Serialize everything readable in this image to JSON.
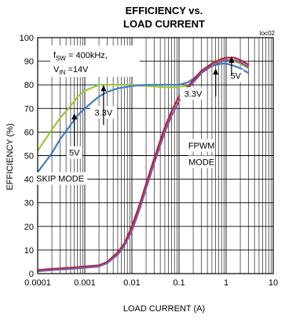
{
  "chart_data": {
    "type": "line",
    "title_line1": "EFFICIENCY vs.",
    "title_line2": "LOAD CURRENT",
    "tag": "toc02",
    "xlabel": "LOAD CURRENT (A)",
    "ylabel": "EFFICIENCY (%)",
    "xscale": "log",
    "xlim": [
      0.0001,
      10
    ],
    "ylim": [
      0,
      100
    ],
    "grid": true,
    "x_ticks": [
      {
        "value": 0.0001,
        "label": "0.0001"
      },
      {
        "value": 0.001,
        "label": "0.001"
      },
      {
        "value": 0.01,
        "label": "0.01"
      },
      {
        "value": 0.1,
        "label": "0.1"
      },
      {
        "value": 1,
        "label": "1"
      },
      {
        "value": 10,
        "label": "10"
      }
    ],
    "y_ticks": [
      {
        "value": 0,
        "label": "0"
      },
      {
        "value": 10,
        "label": "10"
      },
      {
        "value": 20,
        "label": "20"
      },
      {
        "value": 30,
        "label": "30"
      },
      {
        "value": 40,
        "label": "40"
      },
      {
        "value": 50,
        "label": "50"
      },
      {
        "value": 60,
        "label": "60"
      },
      {
        "value": 70,
        "label": "70"
      },
      {
        "value": 80,
        "label": "80"
      },
      {
        "value": 90,
        "label": "90"
      },
      {
        "value": 100,
        "label": "100"
      }
    ],
    "condition_line1": {
      "base": "f",
      "sub": "SW",
      "rest": " = 400kHz,"
    },
    "condition_line2": {
      "base": "V",
      "sub": "IN",
      "rest": " =14V"
    },
    "series": [
      {
        "color": "#9cc63b",
        "points": [
          [
            0.0001,
            52
          ],
          [
            0.0002,
            61
          ],
          [
            0.0003,
            66
          ],
          [
            0.0005,
            71
          ],
          [
            0.0007,
            75
          ],
          [
            0.001,
            77.5
          ],
          [
            0.0015,
            79
          ],
          [
            0.002,
            80
          ],
          [
            0.003,
            80
          ],
          [
            0.005,
            80
          ],
          [
            0.01,
            80
          ],
          [
            0.02,
            79.5
          ],
          [
            0.05,
            79
          ],
          [
            0.1,
            79
          ],
          [
            0.15,
            79.5
          ],
          [
            0.2,
            81
          ],
          [
            0.3,
            85
          ],
          [
            0.5,
            89
          ],
          [
            0.8,
            90.5
          ],
          [
            1,
            90.5
          ],
          [
            1.5,
            90
          ],
          [
            2,
            89
          ],
          [
            3,
            87
          ]
        ]
      },
      {
        "color": "#3f7cc4",
        "points": [
          [
            0.0001,
            43
          ],
          [
            0.0002,
            51
          ],
          [
            0.0003,
            57
          ],
          [
            0.0005,
            63
          ],
          [
            0.0007,
            67
          ],
          [
            0.001,
            70
          ],
          [
            0.0015,
            73
          ],
          [
            0.002,
            75
          ],
          [
            0.003,
            77
          ],
          [
            0.005,
            78.5
          ],
          [
            0.01,
            79.5
          ],
          [
            0.02,
            80
          ],
          [
            0.05,
            80
          ],
          [
            0.1,
            80
          ],
          [
            0.15,
            81
          ],
          [
            0.2,
            82.5
          ],
          [
            0.3,
            85.5
          ],
          [
            0.5,
            88
          ],
          [
            0.8,
            89
          ],
          [
            1,
            89
          ],
          [
            1.5,
            88
          ],
          [
            2,
            87
          ],
          [
            3,
            85
          ]
        ]
      },
      {
        "color": "#b82030",
        "points": [
          [
            0.0001,
            1.5
          ],
          [
            0.0002,
            2
          ],
          [
            0.0005,
            2.5
          ],
          [
            0.001,
            3
          ],
          [
            0.002,
            3.5
          ],
          [
            0.003,
            5
          ],
          [
            0.005,
            9
          ],
          [
            0.007,
            13
          ],
          [
            0.01,
            20
          ],
          [
            0.015,
            30
          ],
          [
            0.02,
            38
          ],
          [
            0.03,
            49
          ],
          [
            0.05,
            62
          ],
          [
            0.07,
            69
          ],
          [
            0.1,
            75
          ],
          [
            0.15,
            79
          ],
          [
            0.2,
            82
          ],
          [
            0.3,
            86
          ],
          [
            0.5,
            89
          ],
          [
            0.7,
            90.5
          ],
          [
            1,
            91.5
          ],
          [
            1.5,
            91.5
          ],
          [
            2,
            90.5
          ],
          [
            3,
            88.5
          ]
        ]
      },
      {
        "color": "#7b5aa6",
        "points": [
          [
            0.0001,
            1
          ],
          [
            0.0002,
            1.5
          ],
          [
            0.0005,
            2
          ],
          [
            0.001,
            2.5
          ],
          [
            0.002,
            3
          ],
          [
            0.003,
            4.5
          ],
          [
            0.005,
            8
          ],
          [
            0.007,
            12
          ],
          [
            0.01,
            18
          ],
          [
            0.015,
            28
          ],
          [
            0.02,
            36
          ],
          [
            0.03,
            47
          ],
          [
            0.05,
            60
          ],
          [
            0.07,
            67
          ],
          [
            0.1,
            73
          ],
          [
            0.15,
            78
          ],
          [
            0.2,
            81
          ],
          [
            0.3,
            85
          ],
          [
            0.5,
            88
          ],
          [
            0.7,
            89.5
          ],
          [
            1,
            90.5
          ],
          [
            1.5,
            90.5
          ],
          [
            2,
            89.5
          ],
          [
            3,
            87.5
          ]
        ]
      }
    ],
    "annotations": [
      {
        "text": "3.3V",
        "pos": [
          0.0025,
          67
        ]
      },
      {
        "text": "5V",
        "pos": [
          0.0006,
          50
        ]
      },
      {
        "text": "SKIP MODE",
        "pos": [
          0.0003,
          39
        ]
      },
      {
        "text": "3.3V",
        "pos": [
          0.2,
          75
        ]
      },
      {
        "text": "5V",
        "pos": [
          1.6,
          82.5
        ]
      },
      {
        "text": "FPWM",
        "pos": [
          0.3,
          53
        ]
      },
      {
        "text": "MODE",
        "pos": [
          0.3,
          46
        ]
      }
    ],
    "arrows": [
      {
        "from": [
          0.0025,
          63
        ],
        "to": [
          0.0025,
          80
        ]
      },
      {
        "from": [
          0.0006,
          54
        ],
        "to": [
          0.0006,
          68
        ]
      },
      {
        "from": [
          0.6,
          75
        ],
        "to": [
          0.6,
          87
        ]
      },
      {
        "from": [
          1.3,
          84
        ],
        "to": [
          1.3,
          92
        ]
      }
    ]
  }
}
